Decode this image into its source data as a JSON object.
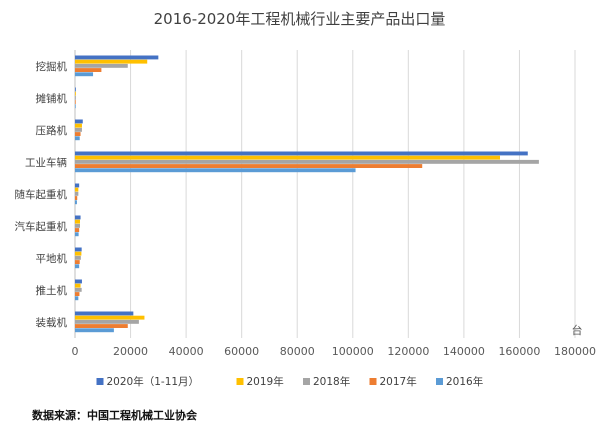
{
  "chart_data": {
    "type": "bar",
    "orientation": "horizontal",
    "title": "2016-2020年工程机械行业主要产品出口量",
    "xlabel": "",
    "ylabel": "",
    "unit_label": "台",
    "xlim": [
      0,
      180000
    ],
    "x_ticks": [
      0,
      20000,
      40000,
      60000,
      80000,
      100000,
      120000,
      140000,
      160000,
      180000
    ],
    "x_tick_labels": [
      "0",
      "20000",
      "40000",
      "60000",
      "80000",
      "100000",
      "120000",
      "140000",
      "160000",
      "180000"
    ],
    "grid": "vertical",
    "legend_position": "bottom",
    "categories": [
      "挖掘机",
      "摊铺机",
      "压路机",
      "工业车辆",
      "随车起重机",
      "汽车起重机",
      "平地机",
      "推土机",
      "装载机"
    ],
    "series": [
      {
        "name": "2020年（1-11月）",
        "color": "#4472C4",
        "values": [
          30000,
          300,
          2800,
          163000,
          1500,
          2000,
          2400,
          2500,
          21000
        ]
      },
      {
        "name": "2019年",
        "color": "#FFC000",
        "values": [
          26000,
          300,
          2500,
          153000,
          1200,
          1800,
          2300,
          2000,
          25000
        ]
      },
      {
        "name": "2018年",
        "color": "#A5A5A5",
        "values": [
          19000,
          300,
          2500,
          167000,
          1200,
          1800,
          2100,
          2400,
          23000
        ]
      },
      {
        "name": "2017年",
        "color": "#ED7D31",
        "values": [
          9500,
          250,
          2000,
          125000,
          800,
          1500,
          1700,
          1600,
          19000
        ]
      },
      {
        "name": "2016年",
        "color": "#5B9BD5",
        "values": [
          6500,
          250,
          1700,
          101000,
          700,
          1300,
          1500,
          1200,
          14000
        ]
      }
    ]
  },
  "source_note": "数据来源：中国工程机械工业协会"
}
